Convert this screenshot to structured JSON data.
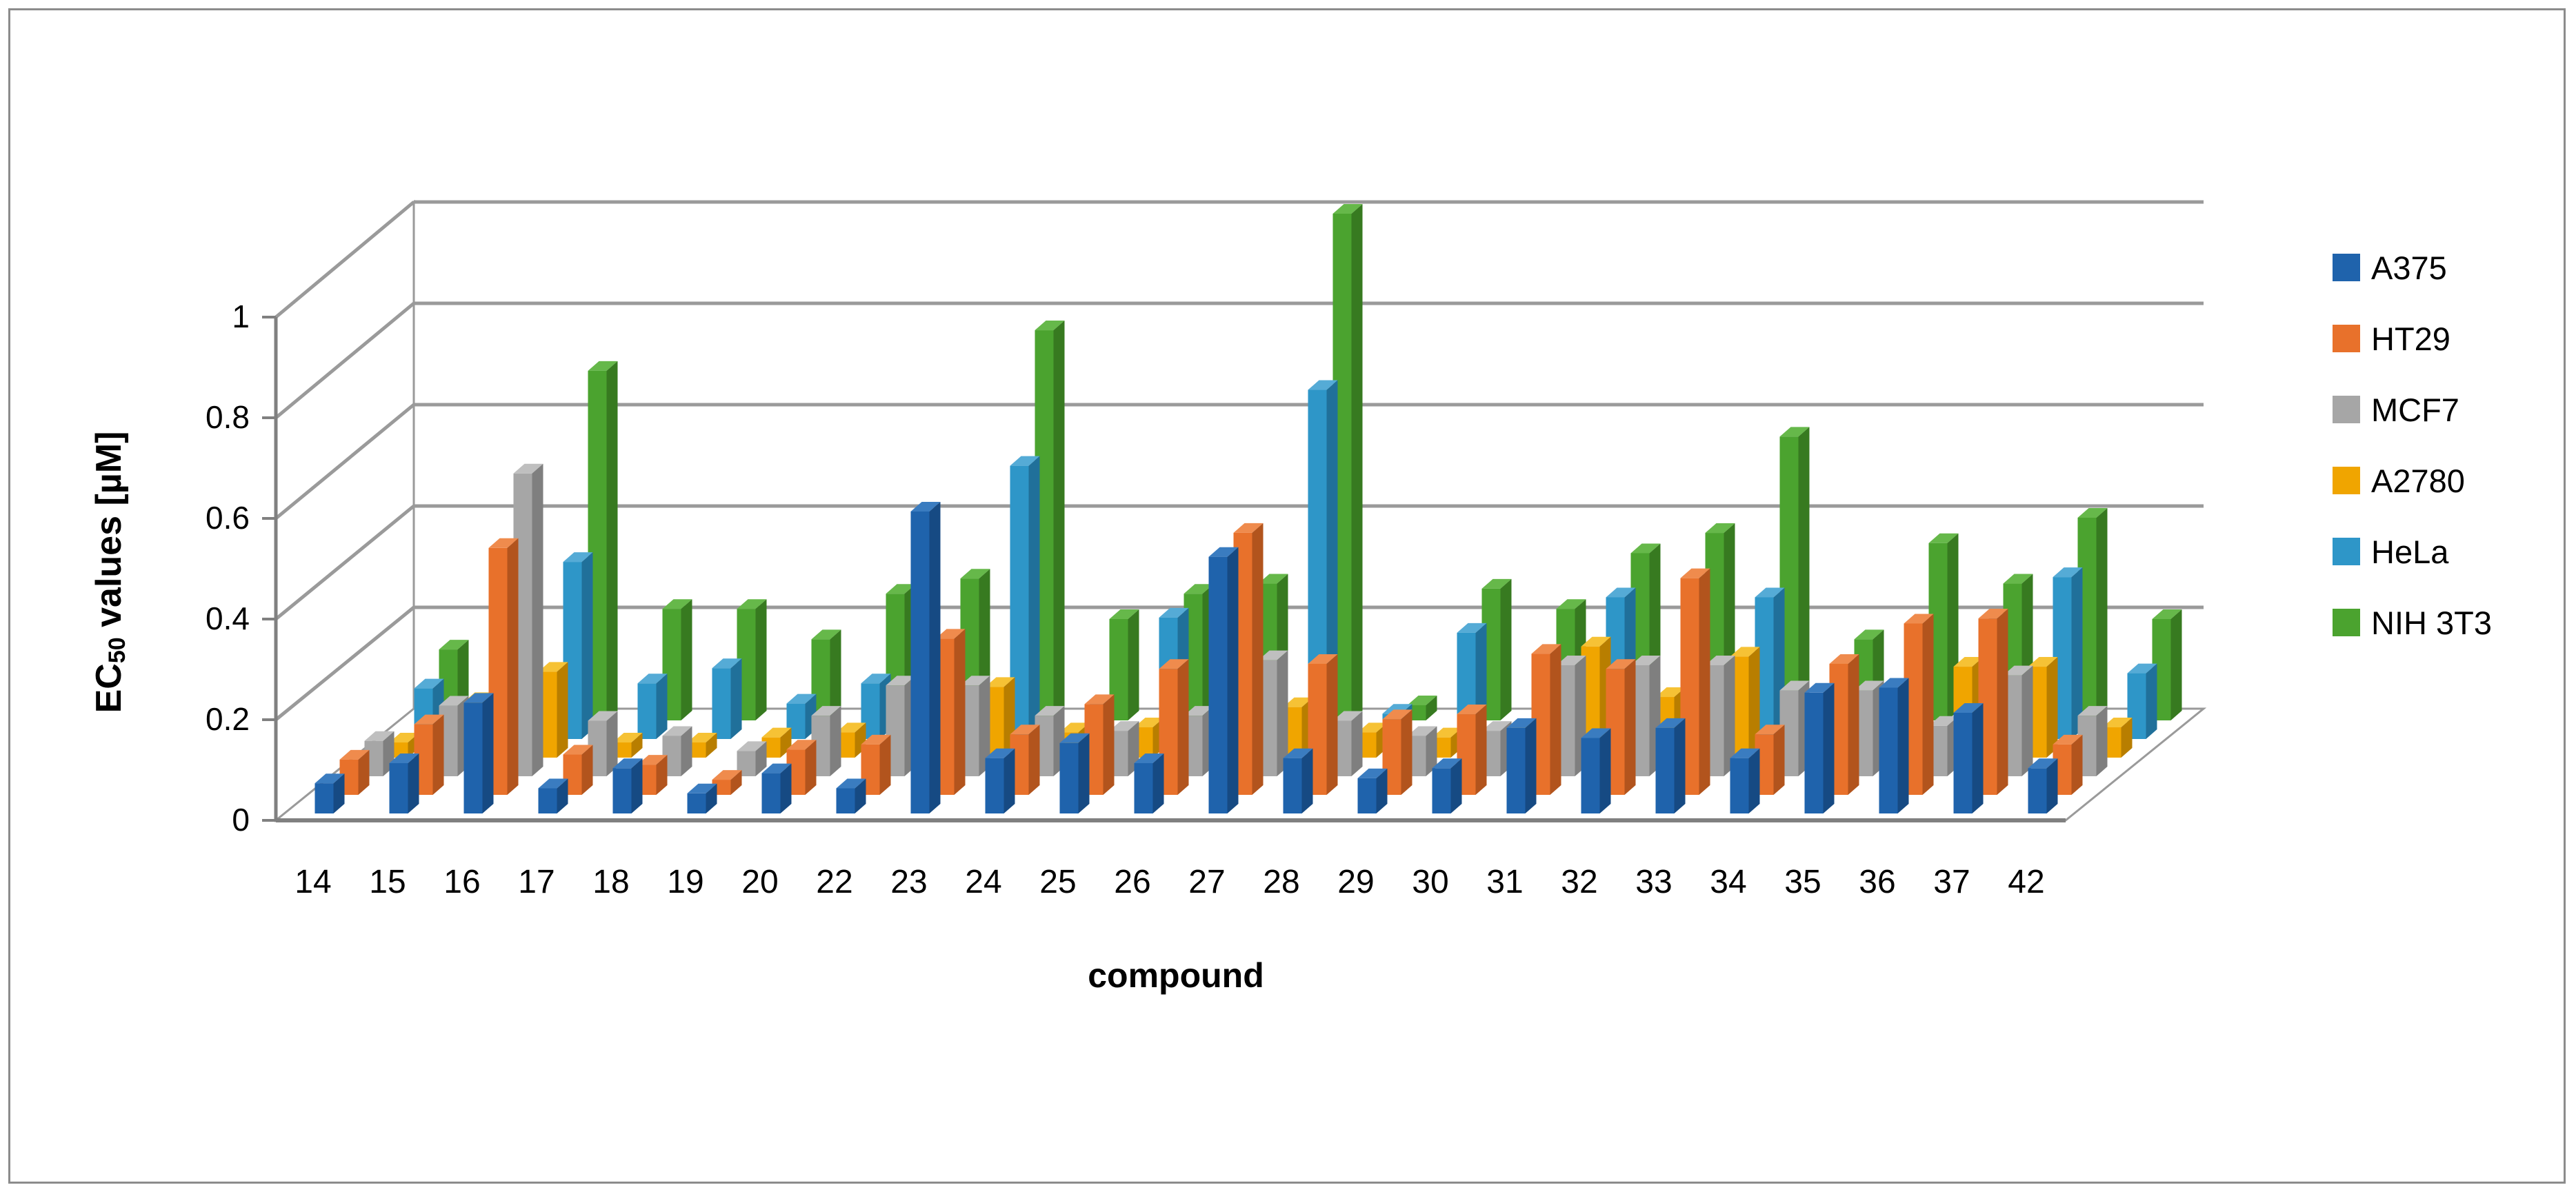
{
  "figure": {
    "background": "#ffffff",
    "border_color": "#8c8c8c"
  },
  "y_axis": {
    "title_prefix": "EC",
    "title_subscript": "50",
    "title_suffix": " values [µM]",
    "ticks": [
      "0",
      "0.2",
      "0.4",
      "0.6",
      "0.8",
      "1"
    ],
    "tick_values": [
      0,
      0.2,
      0.4,
      0.6,
      0.8,
      1.0
    ]
  },
  "x_axis": {
    "title": "compound"
  },
  "legend_items": [
    {
      "label": "A375",
      "color": "#1f63ac"
    },
    {
      "label": "HT29",
      "color": "#e8712b"
    },
    {
      "label": "MCF7",
      "color": "#a6a6a6"
    },
    {
      "label": "A2780",
      "color": "#f0a500"
    },
    {
      "label": "HeLa",
      "color": "#2e96c8"
    },
    {
      "label": "NIH 3T3",
      "color": "#4ba32f"
    }
  ],
  "chart_data": {
    "type": "bar",
    "projection": "3d-depth-series",
    "title": "",
    "xlabel": "compound",
    "ylabel": "EC50 values [µM]",
    "ylim": [
      0,
      1.0
    ],
    "grid": true,
    "legend_position": "right",
    "categories": [
      "14",
      "15",
      "16",
      "17",
      "18",
      "19",
      "20",
      "22",
      "23",
      "24",
      "25",
      "26",
      "27",
      "28",
      "29",
      "30",
      "31",
      "32",
      "33",
      "34",
      "35",
      "36",
      "37",
      "42"
    ],
    "series": [
      {
        "name": "A375",
        "color": "#1f63ac",
        "color_side": "#164a83",
        "color_top": "#3a7cc0",
        "values": [
          0.06,
          0.1,
          0.22,
          0.05,
          0.09,
          0.04,
          0.08,
          0.05,
          0.6,
          0.11,
          0.14,
          0.1,
          0.51,
          0.11,
          0.07,
          0.09,
          0.17,
          0.15,
          0.17,
          0.11,
          0.24,
          0.25,
          0.2,
          0.09
        ]
      },
      {
        "name": "HT29",
        "color": "#e8712b",
        "color_side": "#b2541d",
        "color_top": "#ef8b4d",
        "values": [
          0.07,
          0.14,
          0.49,
          0.08,
          0.06,
          0.03,
          0.09,
          0.1,
          0.31,
          0.12,
          0.18,
          0.25,
          0.52,
          0.26,
          0.15,
          0.16,
          0.28,
          0.25,
          0.43,
          0.12,
          0.26,
          0.34,
          0.35,
          0.1
        ]
      },
      {
        "name": "MCF7",
        "color": "#a6a6a6",
        "color_side": "#7f7f7f",
        "color_top": "#bfbfbf",
        "values": [
          0.07,
          0.14,
          0.6,
          0.11,
          0.08,
          0.05,
          0.12,
          0.18,
          0.18,
          0.12,
          0.09,
          0.12,
          0.23,
          0.11,
          0.08,
          0.09,
          0.22,
          0.22,
          0.22,
          0.17,
          0.17,
          0.1,
          0.2,
          0.12
        ]
      },
      {
        "name": "A2780",
        "color": "#f0a500",
        "color_side": "#b87e00",
        "color_top": "#f6c235",
        "values": [
          0.03,
          0.11,
          0.17,
          0.03,
          0.03,
          0.04,
          0.05,
          0.08,
          0.14,
          0.05,
          0.06,
          0.07,
          0.1,
          0.05,
          0.04,
          0.05,
          0.22,
          0.12,
          0.2,
          0.04,
          0.04,
          0.18,
          0.18,
          0.06
        ]
      },
      {
        "name": "HeLa",
        "color": "#2e96c8",
        "color_side": "#20709a",
        "color_top": "#55abd6",
        "values": [
          0.1,
          0.15,
          0.35,
          0.11,
          0.14,
          0.07,
          0.11,
          0.15,
          0.54,
          0.06,
          0.24,
          0.15,
          0.69,
          0.05,
          0.21,
          0.12,
          0.28,
          0.2,
          0.28,
          0.12,
          0.12,
          0.22,
          0.32,
          0.13
        ]
      },
      {
        "name": "NIH 3T3",
        "color": "#4ba32f",
        "color_side": "#377a20",
        "color_top": "#66b84a",
        "values": [
          0.14,
          0.17,
          0.69,
          0.22,
          0.22,
          0.16,
          0.25,
          0.28,
          0.77,
          0.2,
          0.25,
          0.27,
          1.0,
          0.03,
          0.26,
          0.22,
          0.33,
          0.37,
          0.56,
          0.16,
          0.35,
          0.27,
          0.4,
          0.2
        ]
      }
    ]
  }
}
